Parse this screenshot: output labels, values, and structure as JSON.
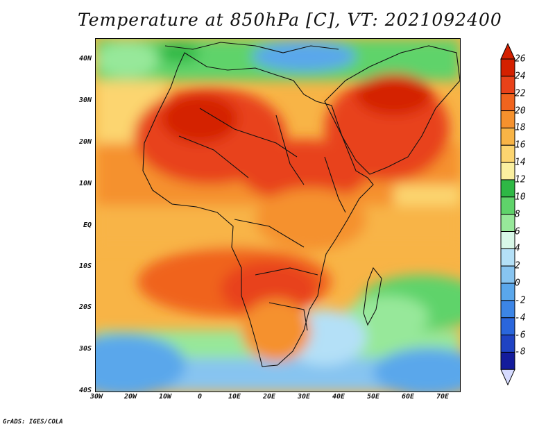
{
  "title": "Temperature at 850hPa [C], VT: 2021092400",
  "credit": "GrADS: IGES/COLA",
  "lat_labels": [
    "40N",
    "30N",
    "20N",
    "10N",
    "EQ",
    "10S",
    "20S",
    "30S",
    "40S"
  ],
  "lon_labels": [
    "30W",
    "20W",
    "10W",
    "0",
    "10E",
    "20E",
    "30E",
    "40E",
    "50E",
    "60E",
    "70E"
  ],
  "colorbar": {
    "labels": [
      "26",
      "24",
      "22",
      "20",
      "18",
      "16",
      "14",
      "12",
      "10",
      "8",
      "6",
      "4",
      "2",
      "0",
      "-2",
      "-4",
      "-6",
      "-8"
    ],
    "colors": [
      "#d42000",
      "#e8421a",
      "#f0641e",
      "#f5912d",
      "#f8b446",
      "#fcd570",
      "#fbf0a0",
      "#2eb845",
      "#5fd36a",
      "#97e89a",
      "#d8f8e8",
      "#b4e0f7",
      "#87c4f0",
      "#5aa7eb",
      "#3c85e6",
      "#2a66dc",
      "#1f43c3",
      "#141c9c",
      "#0b0b6e"
    ],
    "over_color": "#d42000",
    "under_color": "#d6dbff"
  },
  "colors": {
    "sea_cold": "#5aa7eb",
    "sea_cool": "#97e89a",
    "land_hot": "#e8421a",
    "land_warm": "#f5912d",
    "border": "#111111"
  }
}
